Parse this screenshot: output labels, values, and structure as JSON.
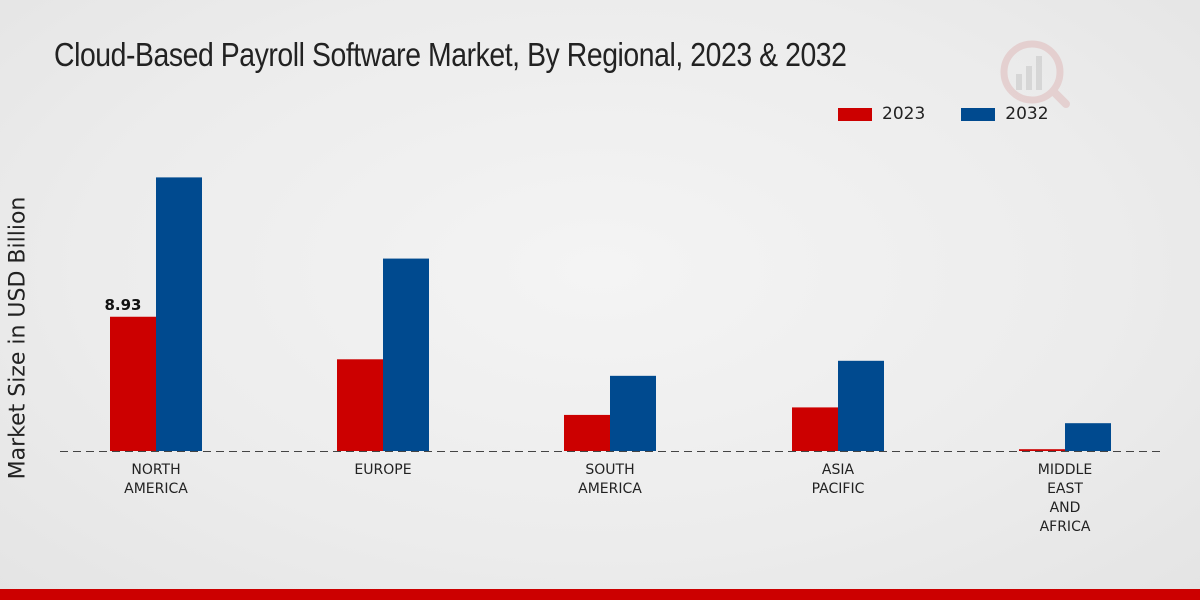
{
  "chart_data": {
    "type": "bar",
    "title": "Cloud-Based Payroll Software Market, By Regional, 2023 & 2032",
    "xlabel": "",
    "ylabel": "Market Size in USD Billion",
    "categories": [
      "NORTH\nAMERICA",
      "EUROPE",
      "SOUTH\nAMERICA",
      "ASIA\nPACIFIC",
      "MIDDLE\nEAST\nAND\nAFRICA"
    ],
    "series": [
      {
        "name": "2023",
        "color": "#cc0000",
        "values": [
          8.93,
          6.1,
          2.4,
          2.9,
          0.12
        ]
      },
      {
        "name": "2032",
        "color": "#004a8f",
        "values": [
          18.2,
          12.8,
          5.0,
          6.0,
          1.85
        ]
      }
    ],
    "data_labels": [
      {
        "series": 0,
        "index": 0,
        "text": "8.93"
      }
    ],
    "ylim": [
      0,
      30
    ],
    "grid": false,
    "legend_position": "top-right"
  }
}
